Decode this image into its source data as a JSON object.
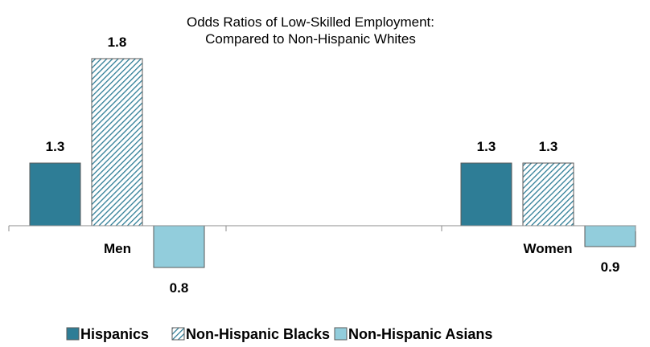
{
  "chart_data": {
    "type": "bar",
    "title": "Odds Ratios of Low-Skilled Employment:",
    "subtitle": "Compared to Non-Hispanic Whites",
    "categories": [
      "Men",
      "Women"
    ],
    "baseline": 1.0,
    "series": [
      {
        "name": "Hispanics",
        "values": [
          1.3,
          1.3
        ],
        "color": "#2e7d96",
        "pattern": "solid"
      },
      {
        "name": "Non-Hispanic Blacks",
        "values": [
          1.8,
          1.3
        ],
        "color": "#2e7d96",
        "pattern": "hatch"
      },
      {
        "name": "Non-Hispanic Asians",
        "values": [
          0.8,
          0.9
        ],
        "color": "#92cddc",
        "pattern": "solid"
      }
    ],
    "value_labels": {
      "Men": [
        "1.3",
        "1.8",
        "0.8"
      ],
      "Women": [
        "1.3",
        "1.3",
        "0.9"
      ]
    },
    "legend_position": "bottom",
    "grid": false
  }
}
